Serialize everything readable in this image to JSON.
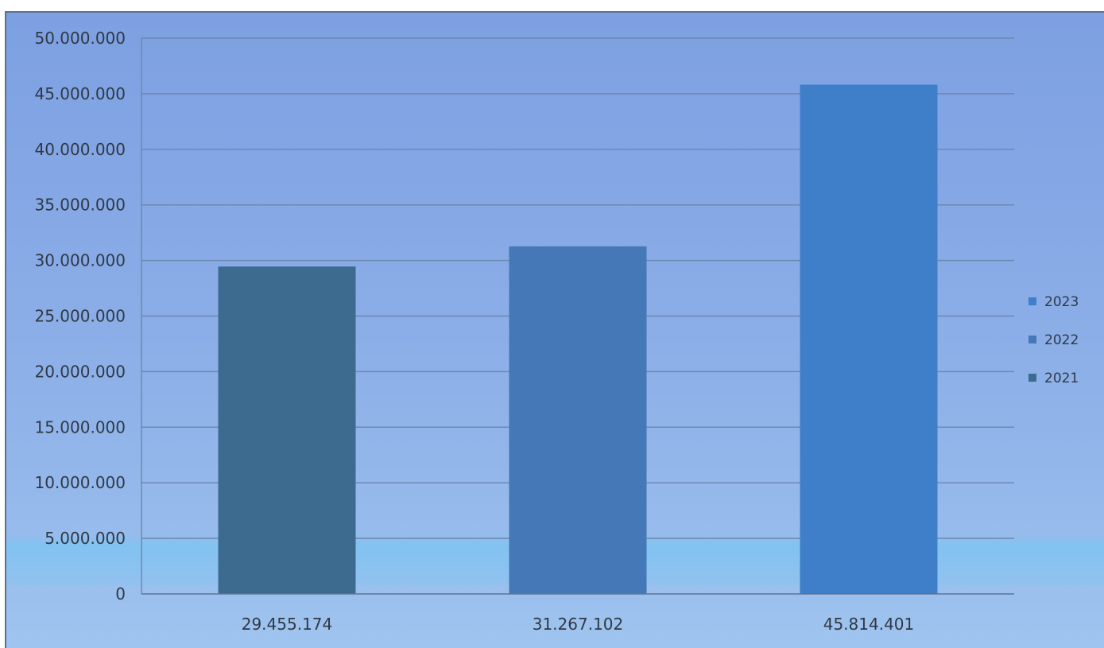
{
  "chart_data": {
    "type": "bar",
    "title": "",
    "xlabel": "",
    "ylabel": "",
    "categories": [
      "29.455.174",
      "31.267.102",
      "45.814.401"
    ],
    "values": [
      29455174,
      31267102,
      45814401
    ],
    "ylim": [
      0,
      50000000
    ],
    "yticks": [
      "0",
      "5.000.000",
      "10.000.000",
      "15.000.000",
      "20.000.000",
      "25.000.000",
      "30.000.000",
      "35.000.000",
      "40.000.000",
      "45.000.000",
      "50.000.000"
    ],
    "grid": true,
    "legend": {
      "placement": "right",
      "entries": [
        {
          "label": "2023",
          "color": "#3f7fc9"
        },
        {
          "label": "2022",
          "color": "#4478b6"
        },
        {
          "label": "2021",
          "color": "#3c6b8f"
        }
      ]
    },
    "bar_colors": [
      "#3c6b8f",
      "#4478b6",
      "#3f7fc9"
    ],
    "background_color": "#8aaee7",
    "grid_color": "#6d89b2"
  }
}
